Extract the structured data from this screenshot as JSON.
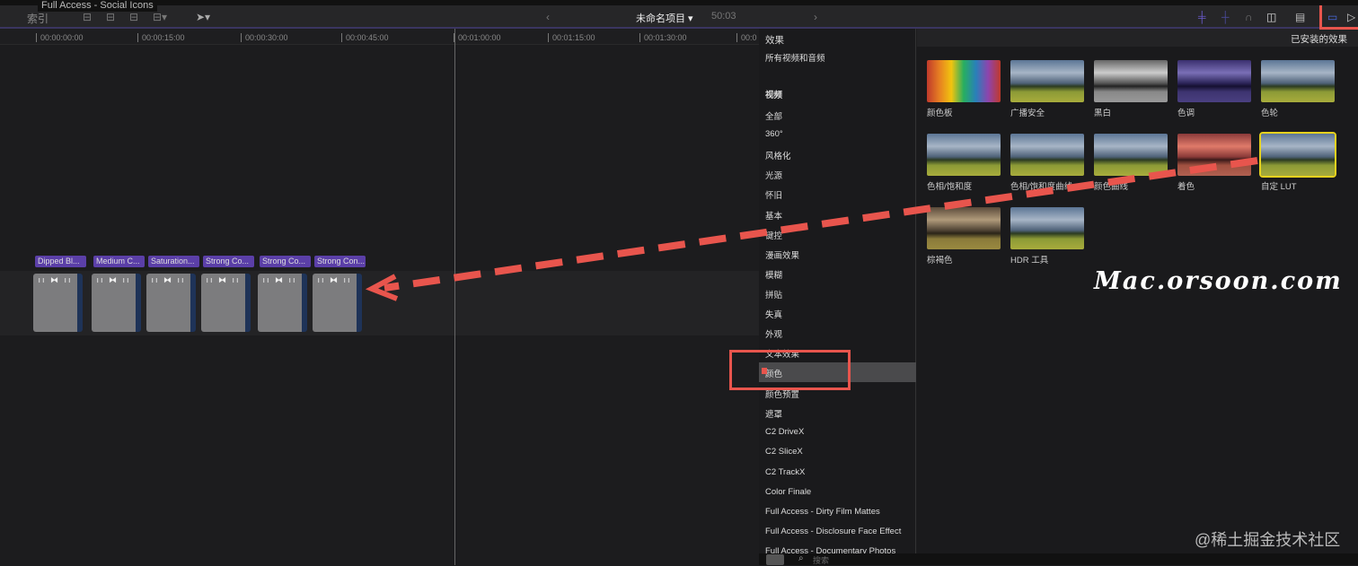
{
  "window": {
    "title": "Full Access - Social Icons"
  },
  "toolbar": {
    "index_label": "索引",
    "project_name": "未命名项目",
    "duration": "50:03",
    "prev": "‹",
    "next": "›"
  },
  "ruler": {
    "ticks": [
      "00:00:00:00",
      "00:00:15:00",
      "00:00:30:00",
      "00:00:45:00",
      "00:01:00:00",
      "00:01:15:00",
      "00:01:30:00",
      "00:0"
    ]
  },
  "clips": [
    {
      "label": "Dipped Bl..."
    },
    {
      "label": "Medium C..."
    },
    {
      "label": "Saturation..."
    },
    {
      "label": "Strong Co..."
    },
    {
      "label": "Strong Co..."
    },
    {
      "label": "Strong Con..."
    }
  ],
  "sidebar": {
    "title": "效果",
    "items": [
      "所有视频和音频",
      "视频",
      "全部",
      "360°",
      "风格化",
      "光源",
      "怀旧",
      "基本",
      "键控",
      "漫画效果",
      "模糊",
      "拼贴",
      "失真",
      "外观",
      "文本效果",
      "颜色",
      "颜色预置",
      "遮罩",
      "C2 DriveX",
      "C2 SliceX",
      "C2 TrackX",
      "Color Finale",
      "Full Access - Dirty Film Mattes",
      "Full Access - Disclosure Face Effect",
      "Full Access - Documentary Photos"
    ],
    "selected": "颜色"
  },
  "browser": {
    "title": "已安装的效果",
    "effects": [
      {
        "name": "颜色板",
        "style": "rainbow"
      },
      {
        "name": "广播安全",
        "style": "normal"
      },
      {
        "name": "黑白",
        "style": "bw"
      },
      {
        "name": "色调",
        "style": "tint"
      },
      {
        "name": "色轮",
        "style": "normal"
      },
      {
        "name": "色相/饱和度",
        "style": "normal"
      },
      {
        "name": "色相/饱和度曲线",
        "style": "normal"
      },
      {
        "name": "颜色曲线",
        "style": "normal"
      },
      {
        "name": "着色",
        "style": "red"
      },
      {
        "name": "自定 LUT",
        "style": "normal",
        "selected": true
      },
      {
        "name": "棕褐色",
        "style": "sepia"
      },
      {
        "name": "HDR 工具",
        "style": "normal"
      }
    ]
  },
  "bottombar": {
    "search_placeholder": "搜索"
  },
  "watermarks": {
    "site": "Mac.orsoon.com",
    "community": "@稀土掘金技术社区"
  },
  "colors": {
    "accent": "#5b3fa8",
    "annotation": "#e8554d",
    "selected_effect": "#e6d21e"
  }
}
